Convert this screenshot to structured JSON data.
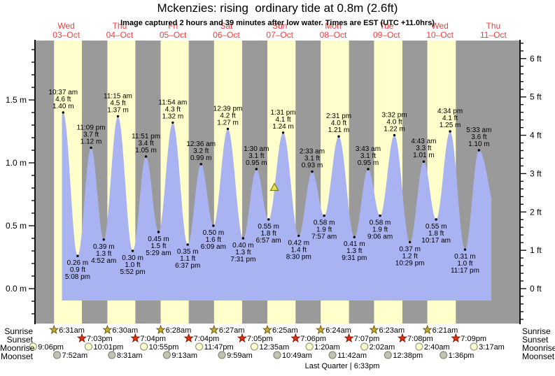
{
  "title": "Mckenzies: rising  ordinary tide at 0.8m (2.6ft)",
  "subtitle": "Image captured 2 hours and 39 minutes after low water. Times are EST (UTC +11.0hrs)",
  "colors": {
    "day_band": "#ffffcc",
    "night_band": "#9a9a9a",
    "tide_fill": "#aab3f2",
    "day_label_red": "#ee3f3f",
    "axis_black": "#111111",
    "marker_fill": "#e6e24a",
    "marker_stroke": "#7c7c10",
    "sunrise_star_fill": "#c9a92c",
    "sunrise_star_stroke": "#6b5e10",
    "sunset_star_fill": "#e03010",
    "sunset_star_stroke": "#8a1500",
    "moonrise_circle_fill": "#ffffcc",
    "moonrise_circle_stroke": "#999988",
    "moonset_circle_fill": "#c4c3b2",
    "moonset_circle_stroke": "#88887a"
  },
  "days": [
    {
      "name": "Wed",
      "date": "03–Oct"
    },
    {
      "name": "Thu",
      "date": "04–Oct"
    },
    {
      "name": "Fri",
      "date": "05–Oct"
    },
    {
      "name": "Sat",
      "date": "06–Oct"
    },
    {
      "name": "Sun",
      "date": "07–Oct"
    },
    {
      "name": "Mon",
      "date": "08–Oct"
    },
    {
      "name": "Tue",
      "date": "09–Oct"
    },
    {
      "name": "Wed",
      "date": "10–Oct"
    },
    {
      "name": "Thu",
      "date": "11–Oct"
    }
  ],
  "axes": {
    "left": {
      "unit": "m",
      "majors": [
        {
          "value": 1.5,
          "label": "1.5 m"
        },
        {
          "value": 1.0,
          "label": "1.0 m"
        },
        {
          "value": 0.5,
          "label": "0.5 m"
        },
        {
          "value": 0.0,
          "label": "0.0 m"
        }
      ]
    },
    "right": {
      "unit": "ft",
      "majors": [
        {
          "value": 6,
          "label": "6 ft"
        },
        {
          "value": 5,
          "label": "5 ft"
        },
        {
          "value": 4,
          "label": "4 ft"
        },
        {
          "value": 3,
          "label": "3 ft"
        },
        {
          "value": 2,
          "label": "2 ft"
        },
        {
          "value": 1,
          "label": "1 ft"
        },
        {
          "value": 0,
          "label": "0 ft"
        }
      ]
    }
  },
  "chart_data": {
    "type": "area",
    "title": "Mckenzies: rising  ordinary tide at 0.8m (2.6ft)",
    "x_range_days": 9,
    "ylim_m": [
      -0.28,
      1.97
    ],
    "y_unit_left": "m",
    "y_unit_right": "ft",
    "grid": false,
    "events": [
      {
        "day": 0,
        "time": "10:37 am",
        "type": "high",
        "m": 1.4,
        "ft": 4.6
      },
      {
        "day": 0,
        "time": "5:08 pm",
        "type": "low",
        "m": 0.26,
        "ft": 0.9
      },
      {
        "day": 0,
        "time": "11:09 pm",
        "type": "high",
        "m": 1.12,
        "ft": 3.7
      },
      {
        "day": 1,
        "time": "4:52 am",
        "type": "low",
        "m": 0.39,
        "ft": 1.3
      },
      {
        "day": 1,
        "time": "11:15 am",
        "type": "high",
        "m": 1.37,
        "ft": 4.5
      },
      {
        "day": 1,
        "time": "5:52 pm",
        "type": "low",
        "m": 0.3,
        "ft": 1.0
      },
      {
        "day": 1,
        "time": "11:51 pm",
        "type": "high",
        "m": 1.05,
        "ft": 3.4
      },
      {
        "day": 2,
        "time": "5:29 am",
        "type": "low",
        "m": 0.45,
        "ft": 1.5
      },
      {
        "day": 2,
        "time": "11:54 am",
        "type": "high",
        "m": 1.32,
        "ft": 4.3
      },
      {
        "day": 2,
        "time": "6:37 pm",
        "type": "low",
        "m": 0.35,
        "ft": 1.1
      },
      {
        "day": 3,
        "time": "12:36 am",
        "type": "high",
        "m": 0.99,
        "ft": 3.2
      },
      {
        "day": 3,
        "time": "6:09 am",
        "type": "low",
        "m": 0.5,
        "ft": 1.6
      },
      {
        "day": 3,
        "time": "12:39 pm",
        "type": "high",
        "m": 1.27,
        "ft": 4.2
      },
      {
        "day": 3,
        "time": "7:31 pm",
        "type": "low",
        "m": 0.4,
        "ft": 1.3
      },
      {
        "day": 4,
        "time": "1:30 am",
        "type": "high",
        "m": 0.95,
        "ft": 3.1
      },
      {
        "day": 4,
        "time": "6:57 am",
        "type": "low",
        "m": 0.55,
        "ft": 1.8
      },
      {
        "day": 4,
        "time": "1:31 pm",
        "type": "high",
        "m": 1.24,
        "ft": 4.1
      },
      {
        "day": 4,
        "time": "8:30 pm",
        "type": "low",
        "m": 0.42,
        "ft": 1.4
      },
      {
        "day": 5,
        "time": "2:33 am",
        "type": "high",
        "m": 0.93,
        "ft": 3.1
      },
      {
        "day": 5,
        "time": "7:57 am",
        "type": "low",
        "m": 0.58,
        "ft": 1.9
      },
      {
        "day": 5,
        "time": "2:31 pm",
        "type": "high",
        "m": 1.21,
        "ft": 4.0
      },
      {
        "day": 5,
        "time": "9:31 pm",
        "type": "low",
        "m": 0.41,
        "ft": 1.3
      },
      {
        "day": 6,
        "time": "3:43 am",
        "type": "high",
        "m": 0.95,
        "ft": 3.1
      },
      {
        "day": 6,
        "time": "9:06 am",
        "type": "low",
        "m": 0.58,
        "ft": 1.9
      },
      {
        "day": 6,
        "time": "3:32 pm",
        "type": "high",
        "m": 1.22,
        "ft": 4.0
      },
      {
        "day": 6,
        "time": "10:29 pm",
        "type": "low",
        "m": 0.37,
        "ft": 1.2
      },
      {
        "day": 7,
        "time": "4:43 am",
        "type": "high",
        "m": 1.01,
        "ft": 3.3
      },
      {
        "day": 7,
        "time": "10:17 am",
        "type": "low",
        "m": 0.55,
        "ft": 1.8
      },
      {
        "day": 7,
        "time": "4:34 pm",
        "type": "high",
        "m": 1.25,
        "ft": 4.1
      },
      {
        "day": 7,
        "time": "11:17 pm",
        "type": "low",
        "m": 0.31,
        "ft": 1.0
      },
      {
        "day": 8,
        "time": "5:33 am",
        "type": "high",
        "m": 1.1,
        "ft": 3.6
      }
    ],
    "current_marker": {
      "day": 4,
      "hours": 9.6,
      "m": 0.8
    }
  },
  "astronomy": {
    "rows": [
      {
        "label": "Sunrise",
        "icon": "sunrise-star",
        "entries": [
          {
            "day": 0,
            "time": "6:31am"
          },
          {
            "day": 1,
            "time": "6:30am"
          },
          {
            "day": 2,
            "time": "6:28am"
          },
          {
            "day": 3,
            "time": "6:27am"
          },
          {
            "day": 4,
            "time": "6:25am"
          },
          {
            "day": 5,
            "time": "6:24am"
          },
          {
            "day": 6,
            "time": "6:23am"
          },
          {
            "day": 7,
            "time": "6:21am"
          }
        ]
      },
      {
        "label": "Sunset",
        "icon": "sunset-star",
        "entries": [
          {
            "day": 0,
            "time": "7:03pm"
          },
          {
            "day": 1,
            "time": "7:04pm"
          },
          {
            "day": 2,
            "time": "7:04pm"
          },
          {
            "day": 3,
            "time": "7:05pm"
          },
          {
            "day": 4,
            "time": "7:06pm"
          },
          {
            "day": 5,
            "time": "7:07pm"
          },
          {
            "day": 6,
            "time": "7:08pm"
          },
          {
            "day": 7,
            "time": "7:09pm"
          }
        ]
      },
      {
        "label": "Moonrise",
        "icon": "moonrise-circle",
        "entries": [
          {
            "day": -1,
            "time": "9:06pm"
          },
          {
            "day": 0,
            "time": "10:01pm"
          },
          {
            "day": 1,
            "time": "10:55pm"
          },
          {
            "day": 2,
            "time": "11:47pm"
          },
          {
            "day": 4,
            "time": "12:35am"
          },
          {
            "day": 5,
            "time": "1:20am"
          },
          {
            "day": 6,
            "time": "2:02am"
          },
          {
            "day": 7,
            "time": "2:40am"
          },
          {
            "day": 8,
            "time": "3:17am"
          }
        ]
      },
      {
        "label": "Moonset",
        "icon": "moonset-circle",
        "entries": [
          {
            "day": 0,
            "time": "7:52am"
          },
          {
            "day": 1,
            "time": "8:31am"
          },
          {
            "day": 2,
            "time": "9:13am"
          },
          {
            "day": 3,
            "time": "9:59am"
          },
          {
            "day": 4,
            "time": "10:49am"
          },
          {
            "day": 5,
            "time": "11:42am"
          },
          {
            "day": 6,
            "time": "12:38pm"
          },
          {
            "day": 7,
            "time": "1:36pm"
          }
        ]
      }
    ],
    "moon_phase_label": "Last Quarter | 6:33pm"
  }
}
